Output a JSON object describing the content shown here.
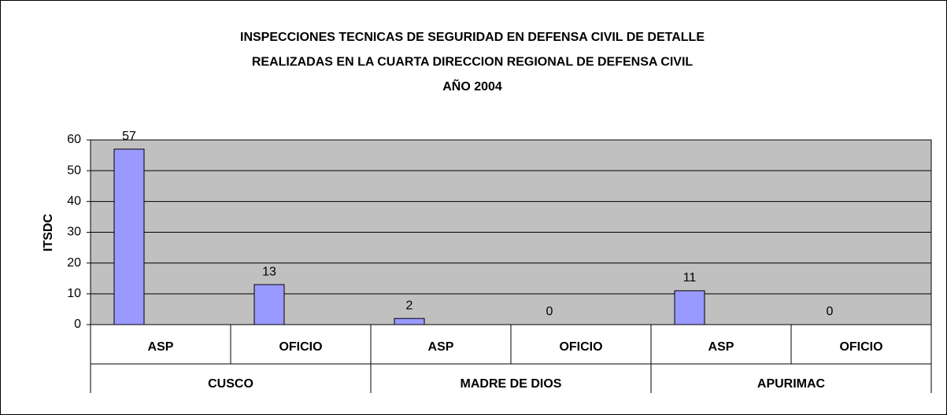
{
  "chart_data": {
    "type": "bar",
    "title": [
      "INSPECCIONES TECNICAS DE SEGURIDAD EN DEFENSA CIVIL DE DETALLE",
      "REALIZADAS EN LA CUARTA DIRECCION REGIONAL DE DEFENSA CIVIL",
      "AÑO 2004"
    ],
    "ylabel": "ITSDC",
    "categories": [
      "ASP",
      "OFICIO",
      "ASP",
      "OFICIO",
      "ASP",
      "OFICIO"
    ],
    "groups": [
      "CUSCO",
      "MADRE DE DIOS",
      "APURIMAC"
    ],
    "values": [
      57,
      13,
      2,
      0,
      11,
      0
    ],
    "color": "#9999ff",
    "ylim": [
      0,
      60
    ],
    "yticks": [
      0,
      10,
      20,
      30,
      40,
      50,
      60
    ],
    "grid": true
  }
}
